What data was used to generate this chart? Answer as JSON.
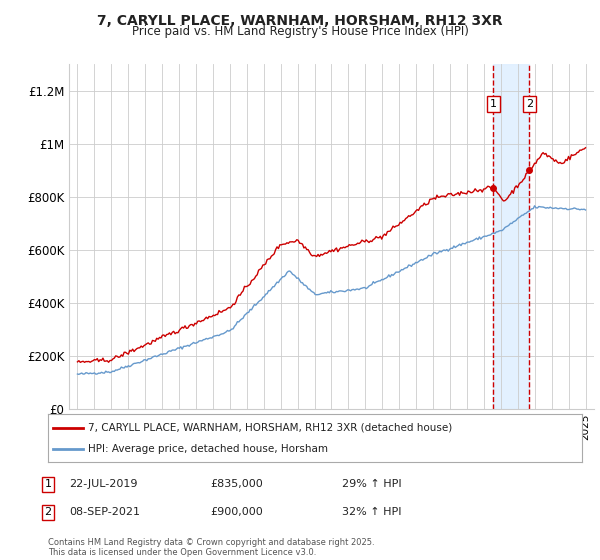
{
  "title": "7, CARYLL PLACE, WARNHAM, HORSHAM, RH12 3XR",
  "subtitle": "Price paid vs. HM Land Registry's House Price Index (HPI)",
  "red_label": "7, CARYLL PLACE, WARNHAM, HORSHAM, RH12 3XR (detached house)",
  "blue_label": "HPI: Average price, detached house, Horsham",
  "annotation1": {
    "num": "1",
    "date": "22-JUL-2019",
    "price": "£835,000",
    "pct": "29% ↑ HPI",
    "x_year": 2019.55
  },
  "annotation2": {
    "num": "2",
    "date": "08-SEP-2021",
    "price": "£900,000",
    "pct": "32% ↑ HPI",
    "x_year": 2021.68
  },
  "ylim": [
    0,
    1300000
  ],
  "yticks": [
    0,
    200000,
    400000,
    600000,
    800000,
    1000000,
    1200000
  ],
  "ytick_labels": [
    "£0",
    "£200K",
    "£400K",
    "£600K",
    "£800K",
    "£1M",
    "£1.2M"
  ],
  "xlim_start": 1994.5,
  "xlim_end": 2025.5,
  "red_color": "#cc0000",
  "blue_color": "#6699cc",
  "background_color": "#ffffff",
  "grid_color": "#cccccc",
  "shade_color": "#ddeeff",
  "footer": "Contains HM Land Registry data © Crown copyright and database right 2025.\nThis data is licensed under the Open Government Licence v3.0."
}
